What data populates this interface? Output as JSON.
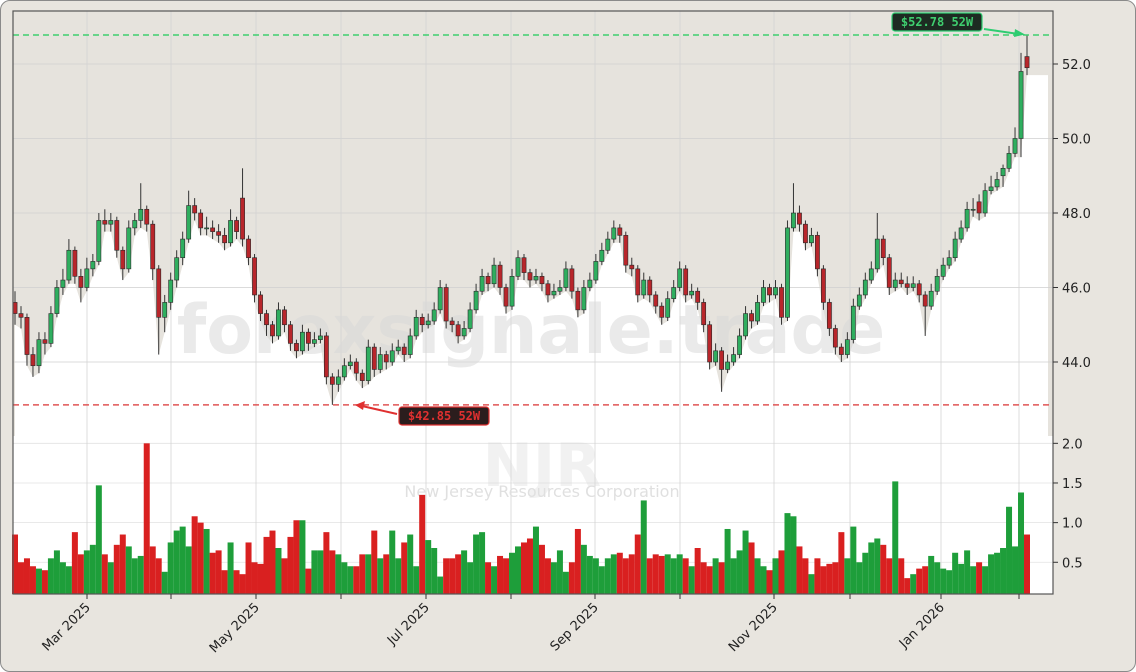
{
  "chart_data": {
    "type": "candlestick",
    "ticker_watermark": "NJR",
    "company_watermark": "New Jersey Resources Corporation",
    "site_watermark": "forexsignale.trade",
    "price_axis": {
      "ticks": [
        44.0,
        46.0,
        48.0,
        50.0,
        52.0
      ],
      "range": [
        42.0,
        53.42
      ]
    },
    "volume_axis": {
      "ticks": [
        0.5,
        1.0,
        1.5,
        2.0
      ],
      "range": [
        0.1,
        2.09
      ]
    },
    "x_tick_labels": [
      "Mar 2025",
      "May 2025",
      "Jul 2025",
      "Sep 2025",
      "Nov 2025",
      "Jan 2026"
    ],
    "grid": true,
    "annotations": {
      "high_52w": {
        "value": 52.78,
        "label": "$52.78 52W",
        "color": "#2ecc71"
      },
      "low_52w": {
        "value": 42.85,
        "label": "$42.85 52W",
        "color": "#e03030"
      }
    },
    "colors": {
      "up": "#1e9e3a",
      "down": "#d92020",
      "up_body": "#2fae5f",
      "down_body": "#b8262b",
      "panel_bg": "#e6e3dd"
    },
    "candle_fields": [
      "open",
      "high",
      "low",
      "close",
      "volume"
    ],
    "candles": [
      [
        45.6,
        45.9,
        45.0,
        45.3,
        0.85
      ],
      [
        45.3,
        45.5,
        44.9,
        45.2,
        0.5
      ],
      [
        45.2,
        45.3,
        43.9,
        44.2,
        0.55
      ],
      [
        44.2,
        44.4,
        43.6,
        43.9,
        0.45
      ],
      [
        43.9,
        44.8,
        43.7,
        44.6,
        0.42
      ],
      [
        44.6,
        44.8,
        44.2,
        44.5,
        0.4
      ],
      [
        44.5,
        45.5,
        44.4,
        45.3,
        0.55
      ],
      [
        45.3,
        46.2,
        45.2,
        46.0,
        0.65
      ],
      [
        46.0,
        46.5,
        45.8,
        46.2,
        0.5
      ],
      [
        46.2,
        47.3,
        46.1,
        47.0,
        0.45
      ],
      [
        47.0,
        47.1,
        46.1,
        46.3,
        0.88
      ],
      [
        46.3,
        46.5,
        45.6,
        46.0,
        0.6
      ],
      [
        46.0,
        46.8,
        45.9,
        46.5,
        0.65
      ],
      [
        46.5,
        46.9,
        46.3,
        46.7,
        0.72
      ],
      [
        46.7,
        48.0,
        46.6,
        47.8,
        1.47
      ],
      [
        47.8,
        48.1,
        47.5,
        47.7,
        0.6
      ],
      [
        47.7,
        48.0,
        47.5,
        47.8,
        0.5
      ],
      [
        47.8,
        47.9,
        46.8,
        47.0,
        0.72
      ],
      [
        47.0,
        47.1,
        46.2,
        46.5,
        0.85
      ],
      [
        46.5,
        47.8,
        46.4,
        47.6,
        0.7
      ],
      [
        47.6,
        48.0,
        47.4,
        47.8,
        0.55
      ],
      [
        47.8,
        48.8,
        47.6,
        48.1,
        0.58
      ],
      [
        48.1,
        48.2,
        47.5,
        47.7,
        2.0
      ],
      [
        47.7,
        47.8,
        46.2,
        46.5,
        0.7
      ],
      [
        46.5,
        46.6,
        44.2,
        45.2,
        0.55
      ],
      [
        45.2,
        45.8,
        44.8,
        45.6,
        0.38
      ],
      [
        45.6,
        46.4,
        45.4,
        46.2,
        0.75
      ],
      [
        46.2,
        47.0,
        46.0,
        46.8,
        0.9
      ],
      [
        46.8,
        47.5,
        46.6,
        47.3,
        0.95
      ],
      [
        47.3,
        48.6,
        47.2,
        48.2,
        0.7
      ],
      [
        48.2,
        48.4,
        47.8,
        48.0,
        1.08
      ],
      [
        48.0,
        48.1,
        47.4,
        47.6,
        1.0
      ],
      [
        47.6,
        47.9,
        47.4,
        47.6,
        0.92
      ],
      [
        47.6,
        47.8,
        47.3,
        47.5,
        0.62
      ],
      [
        47.5,
        47.7,
        47.2,
        47.4,
        0.65
      ],
      [
        47.4,
        47.6,
        47.0,
        47.2,
        0.4
      ],
      [
        47.2,
        48.1,
        47.1,
        47.8,
        0.75
      ],
      [
        47.8,
        47.9,
        47.3,
        47.5,
        0.4
      ],
      [
        48.4,
        49.2,
        47.1,
        47.3,
        0.35
      ],
      [
        47.3,
        47.4,
        46.6,
        46.8,
        0.75
      ],
      [
        46.8,
        46.9,
        45.6,
        45.8,
        0.5
      ],
      [
        45.8,
        45.9,
        45.1,
        45.3,
        0.48
      ],
      [
        45.3,
        45.4,
        44.7,
        45.0,
        0.82
      ],
      [
        45.0,
        45.1,
        44.5,
        44.7,
        0.9
      ],
      [
        44.7,
        45.6,
        44.6,
        45.4,
        0.68
      ],
      [
        45.4,
        45.5,
        44.8,
        45.0,
        0.55
      ],
      [
        45.0,
        45.1,
        44.3,
        44.5,
        0.82
      ],
      [
        44.5,
        44.6,
        44.1,
        44.3,
        1.03
      ],
      [
        44.3,
        45.0,
        44.2,
        44.8,
        1.03
      ],
      [
        44.8,
        44.9,
        44.3,
        44.5,
        0.42
      ],
      [
        44.5,
        44.8,
        44.4,
        44.6,
        0.65
      ],
      [
        44.6,
        44.9,
        44.5,
        44.7,
        0.65
      ],
      [
        44.7,
        44.8,
        43.4,
        43.6,
        0.88
      ],
      [
        43.6,
        43.7,
        42.85,
        43.4,
        0.65
      ],
      [
        43.4,
        43.8,
        43.2,
        43.6,
        0.6
      ],
      [
        43.6,
        44.1,
        43.5,
        43.9,
        0.5
      ],
      [
        43.9,
        44.2,
        43.8,
        44.0,
        0.45
      ],
      [
        44.0,
        44.1,
        43.5,
        43.7,
        0.45
      ],
      [
        43.7,
        43.8,
        43.3,
        43.5,
        0.6
      ],
      [
        43.5,
        44.6,
        43.4,
        44.4,
        0.6
      ],
      [
        44.4,
        44.5,
        43.6,
        43.8,
        0.9
      ],
      [
        43.8,
        44.4,
        43.7,
        44.2,
        0.55
      ],
      [
        44.2,
        44.3,
        43.8,
        44.0,
        0.6
      ],
      [
        44.0,
        44.5,
        43.9,
        44.3,
        0.9
      ],
      [
        44.3,
        44.6,
        44.2,
        44.4,
        0.55
      ],
      [
        44.4,
        44.5,
        44.0,
        44.2,
        0.75
      ],
      [
        44.2,
        44.9,
        44.1,
        44.7,
        0.85
      ],
      [
        44.7,
        45.4,
        44.6,
        45.2,
        0.45
      ],
      [
        45.2,
        45.3,
        44.8,
        45.0,
        1.35
      ],
      [
        45.0,
        45.3,
        44.9,
        45.1,
        0.78
      ],
      [
        45.1,
        45.6,
        45.0,
        45.4,
        0.68
      ],
      [
        45.4,
        46.2,
        45.3,
        46.0,
        0.32
      ],
      [
        46.0,
        46.1,
        44.9,
        45.1,
        0.55
      ],
      [
        45.1,
        45.2,
        44.8,
        45.0,
        0.55
      ],
      [
        45.0,
        45.1,
        44.5,
        44.7,
        0.6
      ],
      [
        44.7,
        45.1,
        44.6,
        44.9,
        0.65
      ],
      [
        44.9,
        45.6,
        44.8,
        45.4,
        0.5
      ],
      [
        45.4,
        46.1,
        45.3,
        45.9,
        0.85
      ],
      [
        45.9,
        46.5,
        45.8,
        46.3,
        0.88
      ],
      [
        46.3,
        46.4,
        45.9,
        46.1,
        0.5
      ],
      [
        46.1,
        46.8,
        46.0,
        46.6,
        0.45
      ],
      [
        46.6,
        46.7,
        45.8,
        46.0,
        0.58
      ],
      [
        46.0,
        46.1,
        45.3,
        45.5,
        0.55
      ],
      [
        45.5,
        46.5,
        45.4,
        46.3,
        0.62
      ],
      [
        46.3,
        47.0,
        46.2,
        46.8,
        0.7
      ],
      [
        46.8,
        46.9,
        46.2,
        46.4,
        0.75
      ],
      [
        46.4,
        46.5,
        46.0,
        46.2,
        0.8
      ],
      [
        46.2,
        46.5,
        46.1,
        46.3,
        0.95
      ],
      [
        46.3,
        46.4,
        45.9,
        46.1,
        0.72
      ],
      [
        46.1,
        46.2,
        45.6,
        45.8,
        0.55
      ],
      [
        45.8,
        46.1,
        45.7,
        45.9,
        0.5
      ],
      [
        45.9,
        46.2,
        45.8,
        46.0,
        0.65
      ],
      [
        46.0,
        46.7,
        45.9,
        46.5,
        0.38
      ],
      [
        46.5,
        46.6,
        45.7,
        45.9,
        0.5
      ],
      [
        45.9,
        46.0,
        45.2,
        45.4,
        0.92
      ],
      [
        45.4,
        46.2,
        45.3,
        46.0,
        0.72
      ],
      [
        46.0,
        46.4,
        45.9,
        46.2,
        0.58
      ],
      [
        46.2,
        46.9,
        46.1,
        46.7,
        0.55
      ],
      [
        46.7,
        47.2,
        46.6,
        47.0,
        0.45
      ],
      [
        47.0,
        47.5,
        46.9,
        47.3,
        0.55
      ],
      [
        47.3,
        47.8,
        47.2,
        47.6,
        0.6
      ],
      [
        47.6,
        47.7,
        47.2,
        47.4,
        0.62
      ],
      [
        47.4,
        47.5,
        46.4,
        46.6,
        0.55
      ],
      [
        46.6,
        46.8,
        46.3,
        46.5,
        0.6
      ],
      [
        46.5,
        46.6,
        45.6,
        45.8,
        0.85
      ],
      [
        45.8,
        46.4,
        45.7,
        46.2,
        1.28
      ],
      [
        46.2,
        46.3,
        45.6,
        45.8,
        0.55
      ],
      [
        45.8,
        45.9,
        45.3,
        45.5,
        0.6
      ],
      [
        45.5,
        45.6,
        45.0,
        45.2,
        0.58
      ],
      [
        45.2,
        45.9,
        45.1,
        45.7,
        0.6
      ],
      [
        45.7,
        46.2,
        45.6,
        46.0,
        0.55
      ],
      [
        46.0,
        46.7,
        45.9,
        46.5,
        0.6
      ],
      [
        46.5,
        46.6,
        45.6,
        45.8,
        0.55
      ],
      [
        45.8,
        46.1,
        45.7,
        45.9,
        0.45
      ],
      [
        45.9,
        46.0,
        45.4,
        45.6,
        0.68
      ],
      [
        45.6,
        45.7,
        44.8,
        45.0,
        0.5
      ],
      [
        45.0,
        45.1,
        43.8,
        44.0,
        0.45
      ],
      [
        44.0,
        44.5,
        43.9,
        44.3,
        0.55
      ],
      [
        44.3,
        44.4,
        43.2,
        43.8,
        0.5
      ],
      [
        43.8,
        44.2,
        43.7,
        44.0,
        0.92
      ],
      [
        44.0,
        44.4,
        43.9,
        44.2,
        0.55
      ],
      [
        44.2,
        44.9,
        44.1,
        44.7,
        0.65
      ],
      [
        44.7,
        45.5,
        44.6,
        45.3,
        0.9
      ],
      [
        45.3,
        45.4,
        44.9,
        45.1,
        0.75
      ],
      [
        45.1,
        45.8,
        45.0,
        45.6,
        0.55
      ],
      [
        45.6,
        46.2,
        45.5,
        46.0,
        0.45
      ],
      [
        46.0,
        46.1,
        45.6,
        45.8,
        0.4
      ],
      [
        45.8,
        46.2,
        45.7,
        46.0,
        0.55
      ],
      [
        46.0,
        46.1,
        45.0,
        45.2,
        0.65
      ],
      [
        45.2,
        47.8,
        45.1,
        47.6,
        1.12
      ],
      [
        47.6,
        48.8,
        47.5,
        48.0,
        1.08
      ],
      [
        48.0,
        48.2,
        47.5,
        47.7,
        0.7
      ],
      [
        47.7,
        47.8,
        47.0,
        47.2,
        0.55
      ],
      [
        47.2,
        47.6,
        47.1,
        47.4,
        0.35
      ],
      [
        47.4,
        47.5,
        46.3,
        46.5,
        0.55
      ],
      [
        46.5,
        46.6,
        45.4,
        45.6,
        0.45
      ],
      [
        45.6,
        45.7,
        44.7,
        44.9,
        0.48
      ],
      [
        44.9,
        45.0,
        44.2,
        44.4,
        0.5
      ],
      [
        44.4,
        44.5,
        44.0,
        44.2,
        0.88
      ],
      [
        44.2,
        44.8,
        44.1,
        44.6,
        0.55
      ],
      [
        44.6,
        45.7,
        44.5,
        45.5,
        0.95
      ],
      [
        45.5,
        46.0,
        45.4,
        45.8,
        0.5
      ],
      [
        45.8,
        46.4,
        45.7,
        46.2,
        0.62
      ],
      [
        46.2,
        46.7,
        46.1,
        46.5,
        0.75
      ],
      [
        46.5,
        48.0,
        46.4,
        47.3,
        0.8
      ],
      [
        47.3,
        47.4,
        46.6,
        46.8,
        0.72
      ],
      [
        46.8,
        46.9,
        45.8,
        46.0,
        0.55
      ],
      [
        46.0,
        46.4,
        45.9,
        46.2,
        1.52
      ],
      [
        46.2,
        46.4,
        46.0,
        46.1,
        0.55
      ],
      [
        46.1,
        46.3,
        45.8,
        46.0,
        0.3
      ],
      [
        46.0,
        46.3,
        45.9,
        46.1,
        0.35
      ],
      [
        46.1,
        46.2,
        45.6,
        45.8,
        0.42
      ],
      [
        45.8,
        45.9,
        44.7,
        45.5,
        0.45
      ],
      [
        45.5,
        46.1,
        45.4,
        45.9,
        0.58
      ],
      [
        45.9,
        46.5,
        45.8,
        46.3,
        0.5
      ],
      [
        46.3,
        46.8,
        46.2,
        46.6,
        0.42
      ],
      [
        46.6,
        47.0,
        46.5,
        46.8,
        0.4
      ],
      [
        46.8,
        47.5,
        46.7,
        47.3,
        0.62
      ],
      [
        47.3,
        47.8,
        47.2,
        47.6,
        0.48
      ],
      [
        47.6,
        48.3,
        47.5,
        48.1,
        0.65
      ],
      [
        48.1,
        48.4,
        47.9,
        48.1,
        0.45
      ],
      [
        48.3,
        48.5,
        47.8,
        48.0,
        0.5
      ],
      [
        48.0,
        48.8,
        47.9,
        48.6,
        0.45
      ],
      [
        48.6,
        49.0,
        48.5,
        48.7,
        0.6
      ],
      [
        48.7,
        49.1,
        48.6,
        48.9,
        0.62
      ],
      [
        49.0,
        49.3,
        48.7,
        49.2,
        0.68
      ],
      [
        49.2,
        49.8,
        49.1,
        49.6,
        1.2
      ],
      [
        49.6,
        50.3,
        49.5,
        50.0,
        0.7
      ],
      [
        50.0,
        52.3,
        49.5,
        51.8,
        1.38
      ],
      [
        52.2,
        52.78,
        51.7,
        51.9,
        0.85
      ]
    ]
  }
}
